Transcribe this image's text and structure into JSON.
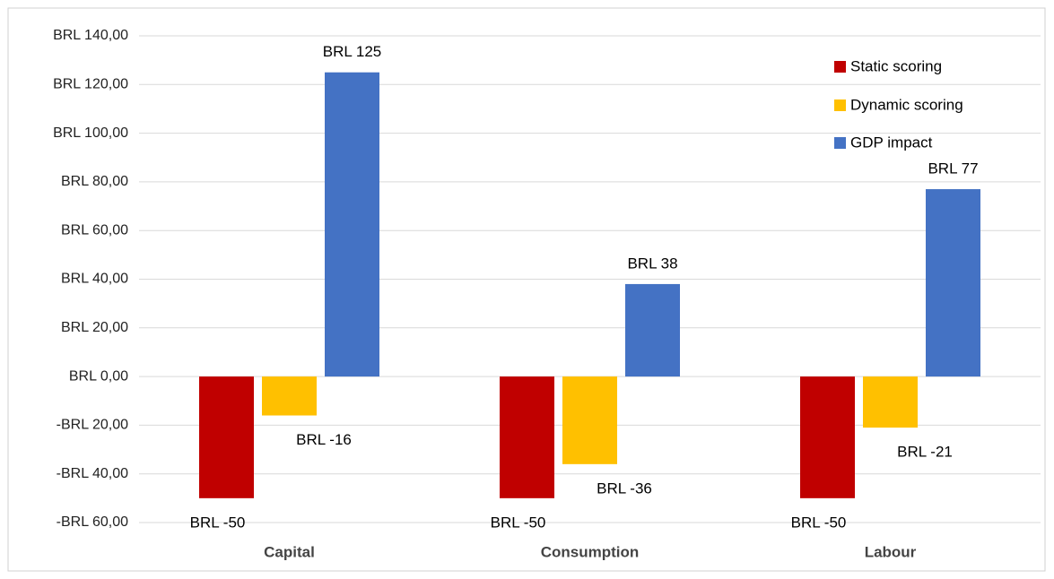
{
  "chart_data": {
    "type": "bar",
    "categories": [
      "Capital",
      "Consumption",
      "Labour"
    ],
    "series": [
      {
        "name": "Static scoring",
        "color": "#c00000",
        "values": [
          -50,
          -50,
          -50
        ],
        "value_labels": [
          "BRL -50",
          "BRL -50",
          "BRL -50"
        ]
      },
      {
        "name": "Dynamic scoring",
        "color": "#ffc000",
        "values": [
          -16,
          -36,
          -21
        ],
        "value_labels": [
          "BRL -16",
          "BRL -36",
          "BRL -21"
        ]
      },
      {
        "name": "GDP impact",
        "color": "#4472c4",
        "values": [
          125,
          38,
          77
        ],
        "value_labels": [
          "BRL 125",
          "BRL 38",
          "BRL 77"
        ]
      }
    ],
    "ylim": [
      -60,
      140
    ],
    "yticks": [
      {
        "value": -60,
        "label": "-BRL 60,00"
      },
      {
        "value": -40,
        "label": "-BRL 40,00"
      },
      {
        "value": -20,
        "label": "-BRL 20,00"
      },
      {
        "value": 0,
        "label": "BRL 0,00"
      },
      {
        "value": 20,
        "label": "BRL 20,00"
      },
      {
        "value": 40,
        "label": "BRL 40,00"
      },
      {
        "value": 60,
        "label": "BRL 60,00"
      },
      {
        "value": 80,
        "label": "BRL 80,00"
      },
      {
        "value": 100,
        "label": "BRL 100,00"
      },
      {
        "value": 120,
        "label": "BRL 120,00"
      },
      {
        "value": 140,
        "label": "BRL 140,00"
      }
    ],
    "grid": true,
    "legend": "top-right"
  }
}
